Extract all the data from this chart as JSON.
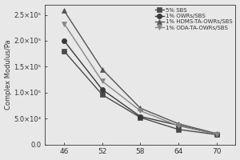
{
  "x": [
    46,
    52,
    58,
    64,
    70
  ],
  "series": {
    "5% SBS": {
      "y": [
        180000,
        96000,
        52000,
        29000,
        19000
      ],
      "marker": "s",
      "color": "#4a4a4a",
      "linestyle": "-",
      "label": "5% SBS"
    },
    "1% OWRs/SBS": {
      "y": [
        200000,
        106000,
        54000,
        37000,
        20000
      ],
      "marker": "o",
      "color": "#3a3a3a",
      "linestyle": "-",
      "label": "1% OWRs/SBS"
    },
    "1% HDMS-TA-OWRs/SBS": {
      "y": [
        258000,
        145000,
        70000,
        40000,
        21000
      ],
      "marker": "^",
      "color": "#555555",
      "linestyle": "-",
      "label": "1% HDMS-TA-OWRs/SBS"
    },
    "1% ODA-TA-OWRs/SBS": {
      "y": [
        233000,
        122000,
        65000,
        36000,
        20000
      ],
      "marker": "v",
      "color": "#888888",
      "linestyle": "-",
      "label": "1% ODA-TA-OWRs/SBS"
    }
  },
  "ylabel": "Complex Modulus/Pa",
  "xlabel": "",
  "xticks": [
    46,
    52,
    58,
    64,
    70
  ],
  "ylim": [
    0,
    270000
  ],
  "yticks": [
    0.0,
    50000,
    100000,
    150000,
    200000,
    250000
  ],
  "ytick_labels": [
    "0.0",
    "5.0×10⁴",
    "1.0×10⁵",
    "1.5×10⁵",
    "2.0×10⁵",
    "2.5×10⁵"
  ],
  "legend_order": [
    "5% SBS",
    "1% OWRs/SBS",
    "1% HDMS-TA-OWRs/SBS",
    "1% ODA-TA-OWRs/SBS"
  ],
  "figure_facecolor": "#e8e8e8",
  "axes_facecolor": "#e8e8e8",
  "linewidth": 1.0,
  "markersize": 4.5
}
